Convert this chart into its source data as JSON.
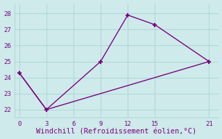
{
  "line1_x": [
    0,
    3,
    9,
    12,
    15,
    21
  ],
  "line1_y": [
    24.3,
    22,
    25,
    27.9,
    27.3,
    25
  ],
  "line2_x": [
    0,
    3,
    21
  ],
  "line2_y": [
    24.3,
    22,
    25
  ],
  "color": "#7B0080",
  "bg_color": "#ceeaea",
  "grid_color": "#b0d8d8",
  "xlabel": "Windchill (Refroidissement éolien,°C)",
  "xlim": [
    -0.5,
    22
  ],
  "ylim": [
    21.5,
    28.6
  ],
  "xticks": [
    0,
    3,
    6,
    9,
    12,
    15,
    21
  ],
  "yticks": [
    22,
    23,
    24,
    25,
    26,
    27,
    28
  ],
  "marker": "+",
  "markersize": 5,
  "markeredgewidth": 1.5,
  "linewidth": 1.0,
  "xlabel_fontsize": 7.5,
  "tick_fontsize": 6.5,
  "font_family": "monospace"
}
